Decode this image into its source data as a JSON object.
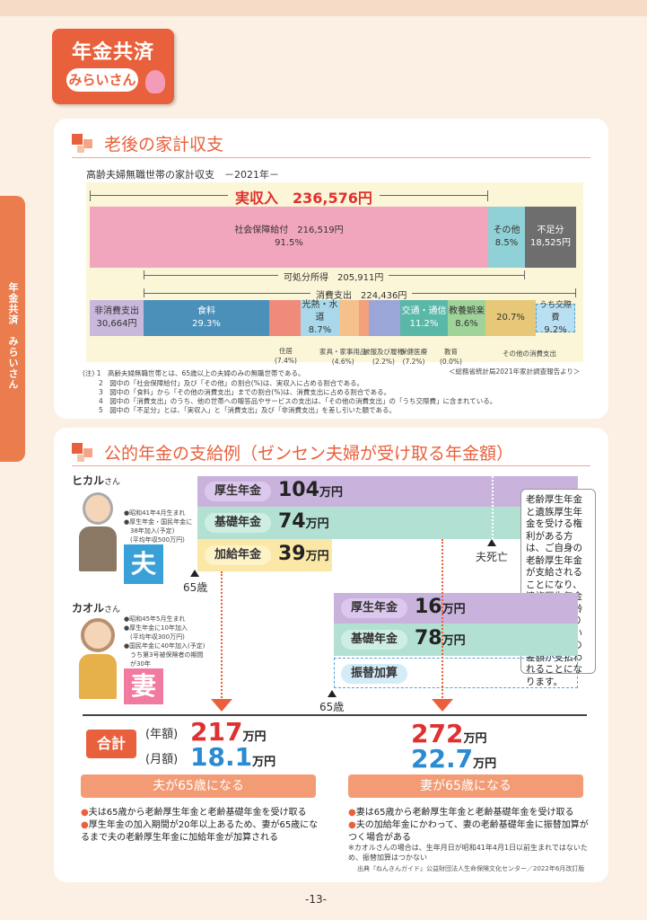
{
  "badge": {
    "title": "年金共済",
    "subtitle": "みらいさん"
  },
  "side_tab": "年金共済　みらいさん",
  "section1": {
    "title": "老後の家計収支",
    "chart_title": "高齢夫婦無職世帯の家計収支　－2021年－",
    "income_total": "実収入　236,576円",
    "social_security": {
      "label": "社会保障給付　216,519円",
      "pct": "91.5%"
    },
    "other": {
      "label": "その他",
      "pct": "8.5%"
    },
    "shortfall": {
      "label": "不足分",
      "value": "18,525円"
    },
    "disposable": "可処分所得　205,911円",
    "consumption": "消費支出　224,436円",
    "non_consumption": {
      "label": "非消費支出",
      "value": "30,664円"
    },
    "food": {
      "label": "食料",
      "pct": "29.3%"
    },
    "utilities": {
      "label": "光熱・水道",
      "pct": "8.7%"
    },
    "transport": {
      "label": "交通・通信",
      "pct": "11.2%"
    },
    "recreation": {
      "label": "教養娯楽",
      "pct": "8.6%"
    },
    "other_pct": "20.7%",
    "social_expense": {
      "label": "うち交際費",
      "pct": "9.2%"
    },
    "callouts": {
      "housing": "住居\n(7.4%)",
      "furniture": "家具・家事用品\n(4.6%)",
      "clothing": "被服及び履物\n(2.2%)",
      "health": "保健医療\n(7.2%)",
      "education": "教育\n(0.0%)",
      "other_consumption": "その他の消費支出"
    },
    "source": "＜総務省統計局2021年家計調査報告より＞",
    "notes": [
      "(注) 1　高齢夫婦無職世帯とは、65歳以上の夫婦のみの無職世帯である。",
      "2　図中の「社会保障給付」及び「その他」の割合(%)は、実収入に占める割合である。",
      "3　図中の「食料」から「その他の消費支出」までの割合(%)は、消費支出に占める割合である。",
      "4　図中の「消費支出」のうち、他の世帯への贈答品やサービスの支出は、「その他の消費支出」の「うち交際費」に含まれている。",
      "5　図中の「不足分」とは、「実収入」と「消費支出」及び「非消費支出」を差し引いた額である。"
    ]
  },
  "section2": {
    "title": "公的年金の支給例（ゼンセン夫婦が受け取る年金額）",
    "husband": {
      "name": "ヒカル",
      "honorific": "さん",
      "info": [
        "●昭和41年4月生まれ",
        "●厚生年金・国民年金に",
        "　38年加入(予定)",
        "　(平均年収500万円)"
      ],
      "role": "夫"
    },
    "wife": {
      "name": "カオル",
      "honorific": "さん",
      "info": [
        "●昭和45年5月生まれ",
        "●厚生年金に10年加入",
        "　(平均年収300万円)",
        "●国民年金に40年加入(予定)",
        "　うち第3号被保険者の期間",
        "　が30年"
      ],
      "role": "妻"
    },
    "h_kousei": {
      "label": "厚生年金",
      "num": "104",
      "unit": "万円"
    },
    "h_kiso": {
      "label": "基礎年金",
      "num": "74",
      "unit": "万円"
    },
    "h_kakyu": {
      "label": "加給年金",
      "num": "39",
      "unit": "万円"
    },
    "w_kousei": {
      "label": "厚生年金",
      "num": "16",
      "unit": "万円"
    },
    "w_kiso": {
      "label": "基礎年金",
      "num": "78",
      "unit": "万円"
    },
    "w_furikae": {
      "label": "振替加算"
    },
    "age65_h": "65歳",
    "age65_w": "65歳",
    "husband_death": "夫死亡",
    "callout": "老齢厚生年金と遺族厚生年金を受ける権利がある方は、ご自身の老齢厚生年金が支給されることになり、遺族厚生年金からは、老齢厚生年金より年金額が高い場合に、その差額が支払われることになります。",
    "total_label": "合計",
    "annual_label": "(年額)",
    "monthly_label": "(月額)",
    "total1": {
      "annual": "217",
      "monthly": "18.1",
      "unit": "万円"
    },
    "total2": {
      "annual": "272",
      "monthly": "22.7",
      "unit": "万円"
    },
    "phase1": "夫が65歳になる",
    "phase2": "妻が65歳になる",
    "bullets1": [
      "夫は65歳から老齢厚生年金と老齢基礎年金を受け取る",
      "厚生年金の加入期間が20年以上あるため、妻が65歳になるまで夫の老齢厚生年金に加給年金が加算される"
    ],
    "bullets2": [
      "妻は65歳から老齢厚生年金と老齢基礎年金を受け取る",
      "夫の加給年金にかわって、妻の老齢基礎年金に振替加算がつく場合がある"
    ],
    "footnote": "※カオルさんの場合は、生年月日が昭和41年4月1日以前生まれではないため、振替加算はつかない",
    "source": "出典『ねんきんガイド』公益財団法人生命保険文化センター／2022年6月改訂版"
  },
  "page_number": "-13-"
}
